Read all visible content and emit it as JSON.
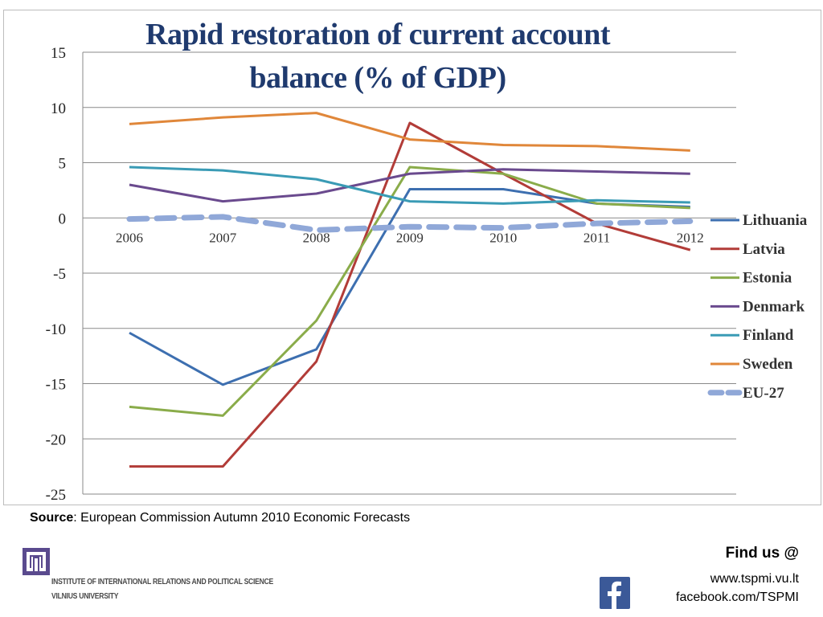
{
  "title_line1": "Rapid restoration of current account",
  "title_line2": "balance (% of GDP)",
  "source": {
    "label": "Source",
    "text": ": European Commission  Autumn 2010 Economic Forecasts"
  },
  "institute": {
    "line1": "INSTITUTE OF INTERNATIONAL RELATIONS AND POLITICAL SCIENCE",
    "line2": "VILNIUS UNIVERSITY"
  },
  "contact": {
    "heading": "Find us @",
    "website": "www.tspmi.vu.lt",
    "facebook": "facebook.com/TSPMI"
  },
  "icons": {
    "logo": "tspmi-logo-icon",
    "facebook": "facebook-icon"
  },
  "chart_data": {
    "type": "line",
    "title": "Rapid restoration of current account balance (% of GDP)",
    "x": [
      "2006",
      "2007",
      "2008",
      "2009",
      "2010",
      "2011",
      "2012"
    ],
    "ylim": [
      -25,
      15
    ],
    "yticks": [
      "15",
      "10",
      "5",
      "0",
      "-5",
      "-10",
      "-15",
      "-20",
      "-25"
    ],
    "grid": true,
    "legend_position": "right",
    "series": [
      {
        "name": "Lithuania",
        "color": "#3d6fb0",
        "dashed": false,
        "values": [
          -10.4,
          -15.1,
          -11.9,
          2.6,
          2.6,
          1.3,
          1.0
        ]
      },
      {
        "name": "Latvia",
        "color": "#b23c38",
        "dashed": false,
        "values": [
          -22.5,
          -22.5,
          -13.0,
          8.6,
          4.0,
          -0.5,
          -2.9
        ]
      },
      {
        "name": "Estonia",
        "color": "#8aac4a",
        "dashed": false,
        "values": [
          -17.1,
          -17.9,
          -9.3,
          4.6,
          4.0,
          1.3,
          0.9
        ]
      },
      {
        "name": "Denmark",
        "color": "#6a4a8e",
        "dashed": false,
        "values": [
          3.0,
          1.5,
          2.2,
          4.0,
          4.4,
          4.2,
          4.0
        ]
      },
      {
        "name": "Finland",
        "color": "#3a9bb5",
        "dashed": false,
        "values": [
          4.6,
          4.3,
          3.5,
          1.5,
          1.3,
          1.6,
          1.4
        ]
      },
      {
        "name": "Sweden",
        "color": "#e0873a",
        "dashed": false,
        "values": [
          8.5,
          9.1,
          9.5,
          7.1,
          6.6,
          6.5,
          6.1
        ]
      },
      {
        "name": "EU-27",
        "color": "#90a8d8",
        "dashed": true,
        "values": [
          -0.1,
          0.1,
          -1.1,
          -0.8,
          -0.9,
          -0.5,
          -0.3
        ]
      }
    ]
  }
}
